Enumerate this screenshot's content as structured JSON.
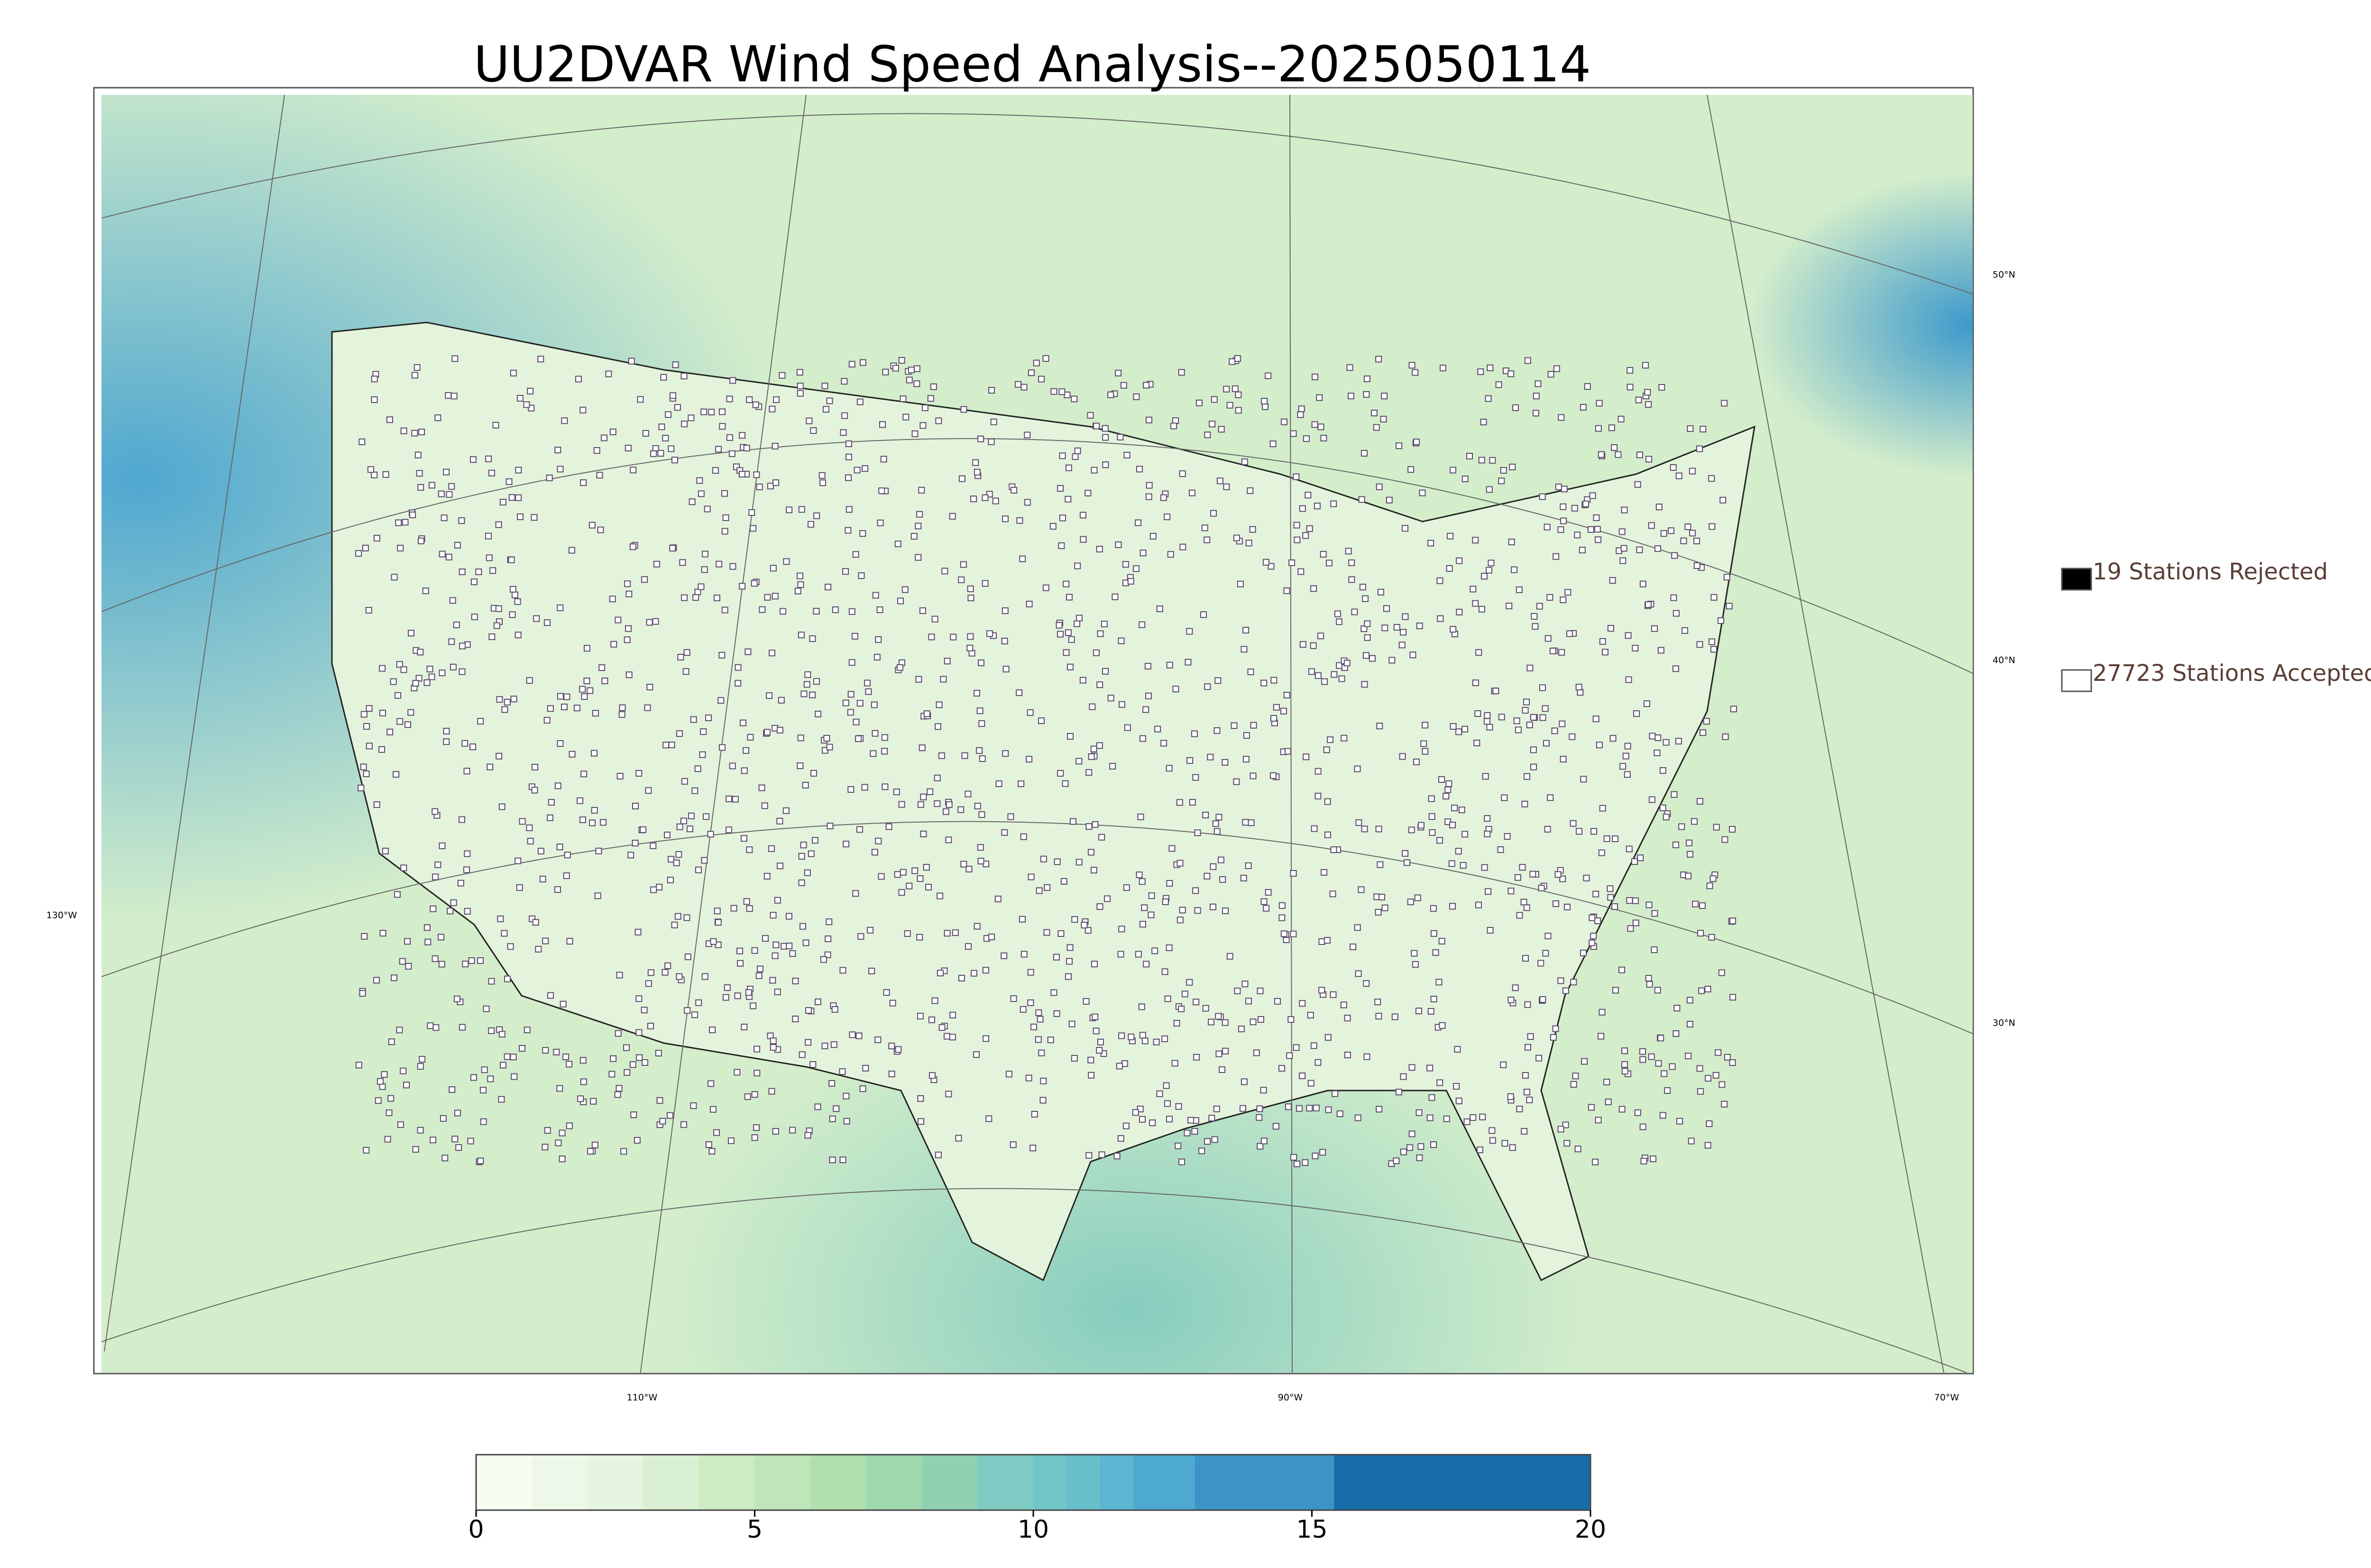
{
  "title": "UU2DVAR Wind Speed Analysis--2025050114",
  "legend": [
    {
      "label": "19 Stations Rejected",
      "fill": "#000000"
    },
    {
      "label": "27723 Stations Accepted",
      "fill": "#ffffff"
    }
  ],
  "graticule": {
    "lat_labels": [
      "50°N",
      "40°N",
      "30°N"
    ],
    "lon_labels": [
      "130°W",
      "110°W",
      "90°W",
      "70°W"
    ]
  },
  "colorbar": {
    "lim": [
      0,
      20
    ],
    "ticks": [
      0,
      5,
      10,
      15,
      20
    ],
    "bounds": [
      0,
      1,
      2,
      3,
      4,
      5,
      6,
      7,
      8,
      9,
      10,
      10.6,
      11.2,
      11.8,
      12.9,
      15.4,
      20
    ],
    "colors": [
      "#f7fcf0",
      "#eef8e8",
      "#e5f5e0",
      "#daf0d4",
      "#cdebc5",
      "#bfe6b8",
      "#b1e0ae",
      "#a0d9ad",
      "#8fd2b3",
      "#7dcbc3",
      "#71c5c6",
      "#66bfca",
      "#5ab6d3",
      "#4ea9d2",
      "#3b94c5",
      "#176ba8"
    ]
  }
}
